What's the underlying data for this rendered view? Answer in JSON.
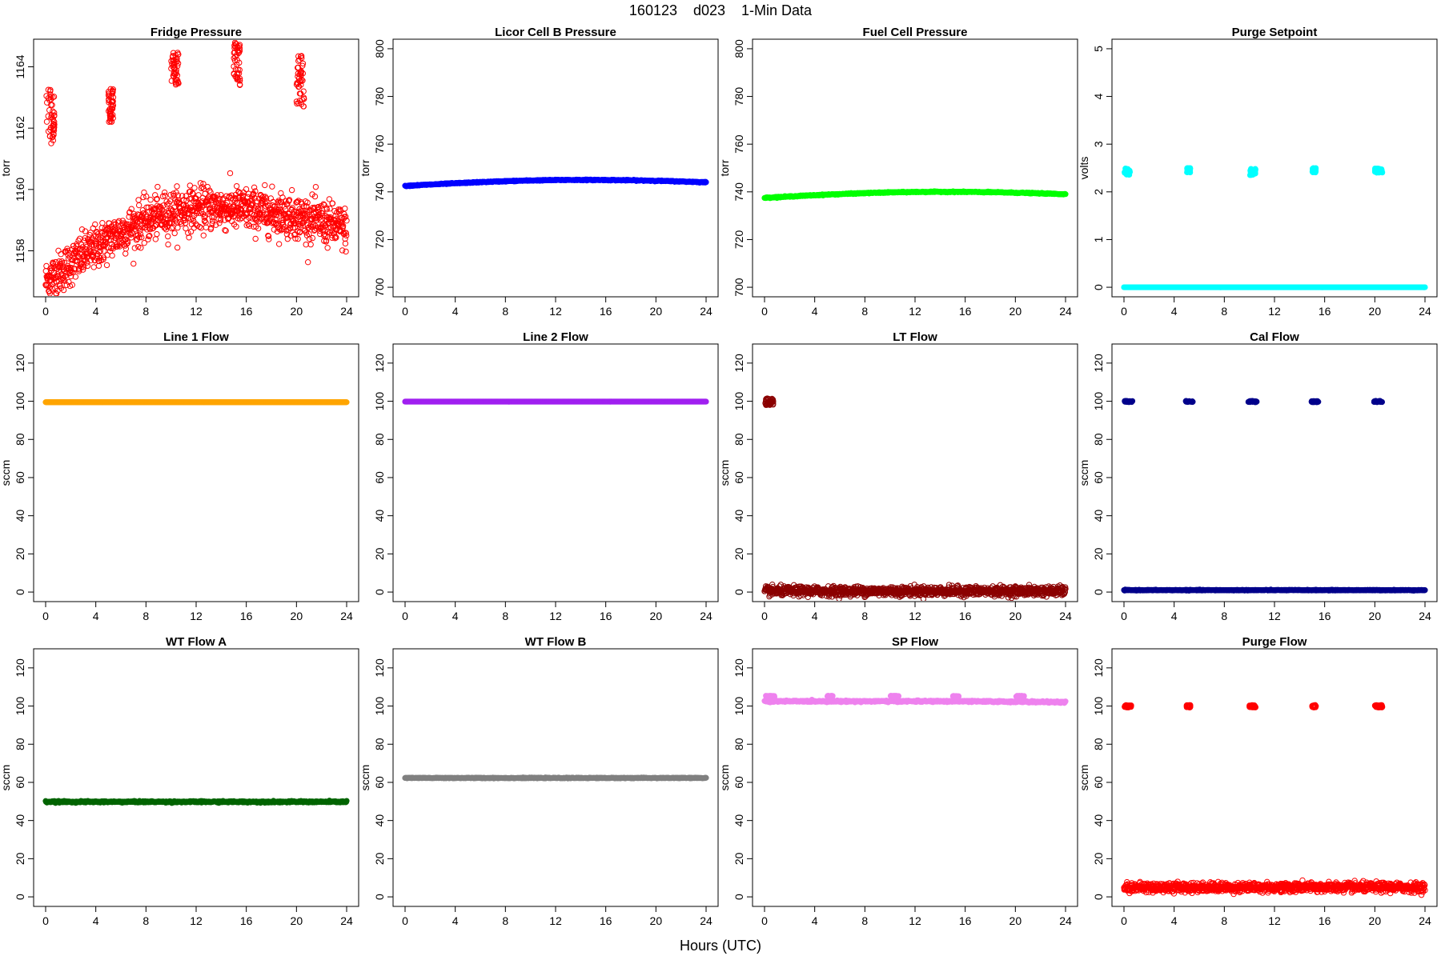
{
  "figure": {
    "title": "160123    d023    1-Min Data",
    "xlabel": "Hours (UTC)"
  },
  "chart_data": [
    {
      "type": "scatter",
      "title": "Fridge Pressure",
      "ylabel": "torr",
      "xlim": [
        0,
        24
      ],
      "ylim": [
        1156.5,
        1164.9
      ],
      "xticks": [
        0,
        4,
        8,
        12,
        16,
        20,
        24
      ],
      "yticks": [
        1158,
        1160,
        1162,
        1164
      ],
      "color": "#ff0000",
      "marker": "open-circle",
      "baseline": {
        "type": "arc",
        "start": 1157.0,
        "peak": 1159.4,
        "peak_x": 13,
        "end": 1158.7,
        "noise": 0.35
      },
      "clusters": [
        {
          "x": [
            0.05,
            0.7
          ],
          "y": [
            1161.5,
            1163.3
          ]
        },
        {
          "x": [
            5.0,
            5.4
          ],
          "y": [
            1162.1,
            1163.3
          ]
        },
        {
          "x": [
            10.0,
            10.6
          ],
          "y": [
            1163.4,
            1164.5
          ]
        },
        {
          "x": [
            15.0,
            15.5
          ],
          "y": [
            1163.4,
            1164.8
          ]
        },
        {
          "x": [
            20.0,
            20.6
          ],
          "y": [
            1162.7,
            1164.4
          ]
        }
      ]
    },
    {
      "type": "scatter",
      "title": "Licor Cell B Pressure",
      "ylabel": "torr",
      "xlim": [
        0,
        24
      ],
      "ylim": [
        696,
        804
      ],
      "xticks": [
        0,
        4,
        8,
        12,
        16,
        20,
        24
      ],
      "yticks": [
        700,
        720,
        740,
        760,
        780,
        800
      ],
      "color": "#0000ff",
      "marker": "filled",
      "baseline": {
        "type": "arc",
        "start": 742.5,
        "peak": 745.0,
        "peak_x": 14,
        "end": 744.0,
        "noise": 0.1
      }
    },
    {
      "type": "scatter",
      "title": "Fuel Cell Pressure",
      "ylabel": "torr",
      "xlim": [
        0,
        24
      ],
      "ylim": [
        696,
        804
      ],
      "xticks": [
        0,
        4,
        8,
        12,
        16,
        20,
        24
      ],
      "yticks": [
        700,
        720,
        740,
        760,
        780,
        800
      ],
      "color": "#00ff00",
      "marker": "filled",
      "baseline": {
        "type": "arc",
        "start": 737.5,
        "peak": 740.0,
        "peak_x": 14,
        "end": 739.0,
        "noise": 0.1
      }
    },
    {
      "type": "scatter",
      "title": "Purge Setpoint",
      "ylabel": "volts",
      "xlim": [
        0,
        24
      ],
      "ylim": [
        -0.2,
        5.2
      ],
      "xticks": [
        0,
        4,
        8,
        12,
        16,
        20,
        24
      ],
      "yticks": [
        0,
        1,
        2,
        3,
        4,
        5
      ],
      "color": "#00ffff",
      "marker": "filled",
      "baseline": {
        "type": "flat",
        "value": 0,
        "noise": 0
      },
      "clusters": [
        {
          "x": [
            0.05,
            0.5
          ],
          "y": [
            2.35,
            2.5
          ]
        },
        {
          "x": [
            5.0,
            5.3
          ],
          "y": [
            2.4,
            2.5
          ]
        },
        {
          "x": [
            10.0,
            10.5
          ],
          "y": [
            2.35,
            2.5
          ]
        },
        {
          "x": [
            15.0,
            15.3
          ],
          "y": [
            2.4,
            2.5
          ]
        },
        {
          "x": [
            20.0,
            20.6
          ],
          "y": [
            2.4,
            2.5
          ]
        }
      ]
    },
    {
      "type": "scatter",
      "title": "Line 1 Flow",
      "ylabel": "sccm",
      "xlim": [
        0,
        24
      ],
      "ylim": [
        -5,
        130
      ],
      "xticks": [
        0,
        4,
        8,
        12,
        16,
        20,
        24
      ],
      "yticks": [
        0,
        20,
        40,
        60,
        80,
        100,
        120
      ],
      "color": "#ffa500",
      "marker": "filled",
      "baseline": {
        "type": "flat",
        "value": 99.5,
        "noise": 0
      }
    },
    {
      "type": "scatter",
      "title": "Line 2 Flow",
      "ylabel": "",
      "xlim": [
        0,
        24
      ],
      "ylim": [
        -5,
        130
      ],
      "xticks": [
        0,
        4,
        8,
        12,
        16,
        20,
        24
      ],
      "yticks": [
        0,
        20,
        40,
        60,
        80,
        100,
        120
      ],
      "color": "#a020f0",
      "marker": "filled",
      "baseline": {
        "type": "flat",
        "value": 99.8,
        "noise": 0
      }
    },
    {
      "type": "scatter",
      "title": "LT Flow",
      "ylabel": "sccm",
      "xlim": [
        0,
        24
      ],
      "ylim": [
        -5,
        130
      ],
      "xticks": [
        0,
        4,
        8,
        12,
        16,
        20,
        24
      ],
      "yticks": [
        0,
        20,
        40,
        60,
        80,
        100,
        120
      ],
      "color": "#8b0000",
      "marker": "open-circle",
      "baseline": {
        "type": "flat",
        "value": 0.5,
        "noise": 1.2
      },
      "clusters": [
        {
          "x": [
            0.05,
            0.7
          ],
          "y": [
            98.0,
            101.5
          ]
        }
      ]
    },
    {
      "type": "scatter",
      "title": "Cal Flow",
      "ylabel": "sccm",
      "xlim": [
        0,
        24
      ],
      "ylim": [
        -5,
        130
      ],
      "xticks": [
        0,
        4,
        8,
        12,
        16,
        20,
        24
      ],
      "yticks": [
        0,
        20,
        40,
        60,
        80,
        100,
        120
      ],
      "color": "#00008b",
      "marker": "filled",
      "baseline": {
        "type": "flat",
        "value": 1,
        "noise": 0.1
      },
      "clusters": [
        {
          "x": [
            0.05,
            0.7
          ],
          "y": [
            99.5,
            100.2
          ]
        },
        {
          "x": [
            4.9,
            5.5
          ],
          "y": [
            99.5,
            100.2
          ]
        },
        {
          "x": [
            9.9,
            10.6
          ],
          "y": [
            99.5,
            100.2
          ]
        },
        {
          "x": [
            14.9,
            15.5
          ],
          "y": [
            99.5,
            100.2
          ]
        },
        {
          "x": [
            19.9,
            20.6
          ],
          "y": [
            99.5,
            100.2
          ]
        }
      ]
    },
    {
      "type": "scatter",
      "title": "WT Flow A",
      "ylabel": "sccm",
      "xlim": [
        0,
        24
      ],
      "ylim": [
        -5,
        130
      ],
      "xticks": [
        0,
        4,
        8,
        12,
        16,
        20,
        24
      ],
      "yticks": [
        0,
        20,
        40,
        60,
        80,
        100,
        120
      ],
      "color": "#006400",
      "marker": "filled",
      "baseline": {
        "type": "flat",
        "value": 49.8,
        "noise": 0.2
      }
    },
    {
      "type": "scatter",
      "title": "WT Flow B",
      "ylabel": "sccm",
      "xlim": [
        0,
        24
      ],
      "ylim": [
        -5,
        130
      ],
      "xticks": [
        0,
        4,
        8,
        12,
        16,
        20,
        24
      ],
      "yticks": [
        0,
        20,
        40,
        60,
        80,
        100,
        120
      ],
      "color": "#808080",
      "marker": "filled",
      "baseline": {
        "type": "flat",
        "value": 62.3,
        "noise": 0.1
      }
    },
    {
      "type": "scatter",
      "title": "SP Flow",
      "ylabel": "sccm",
      "xlim": [
        0,
        24
      ],
      "ylim": [
        -5,
        130
      ],
      "xticks": [
        0,
        4,
        8,
        12,
        16,
        20,
        24
      ],
      "yticks": [
        0,
        20,
        40,
        60,
        80,
        100,
        120
      ],
      "color": "#ee82ee",
      "marker": "filled",
      "baseline": {
        "type": "arc",
        "start": 102.5,
        "peak": 102.5,
        "peak_x": 12,
        "end": 102.0,
        "noise": 0.2
      },
      "clusters": [
        {
          "x": [
            0.05,
            0.8
          ],
          "y": [
            104.8,
            105.4
          ]
        },
        {
          "x": [
            5.0,
            5.5
          ],
          "y": [
            104.8,
            105.4
          ]
        },
        {
          "x": [
            10.0,
            10.7
          ],
          "y": [
            104.8,
            105.4
          ]
        },
        {
          "x": [
            15.0,
            15.5
          ],
          "y": [
            104.8,
            105.4
          ]
        },
        {
          "x": [
            20.0,
            20.7
          ],
          "y": [
            104.8,
            105.4
          ]
        }
      ]
    },
    {
      "type": "scatter",
      "title": "Purge Flow",
      "ylabel": "sccm",
      "xlim": [
        0,
        24
      ],
      "ylim": [
        -5,
        130
      ],
      "xticks": [
        0,
        4,
        8,
        12,
        16,
        20,
        24
      ],
      "yticks": [
        0,
        20,
        40,
        60,
        80,
        100,
        120
      ],
      "color": "#ff0000",
      "marker": "open-circle",
      "baseline": {
        "type": "flat",
        "value": 5,
        "noise": 1.2
      },
      "clusters": [
        {
          "x": [
            0.05,
            0.6
          ],
          "y": [
            99.3,
            100.5
          ]
        },
        {
          "x": [
            5.0,
            5.3
          ],
          "y": [
            99.3,
            100.5
          ]
        },
        {
          "x": [
            10.0,
            10.5
          ],
          "y": [
            99.3,
            100.5
          ]
        },
        {
          "x": [
            15.0,
            15.3
          ],
          "y": [
            99.3,
            100.5
          ]
        },
        {
          "x": [
            20.0,
            20.6
          ],
          "y": [
            99.3,
            100.5
          ]
        }
      ]
    }
  ]
}
